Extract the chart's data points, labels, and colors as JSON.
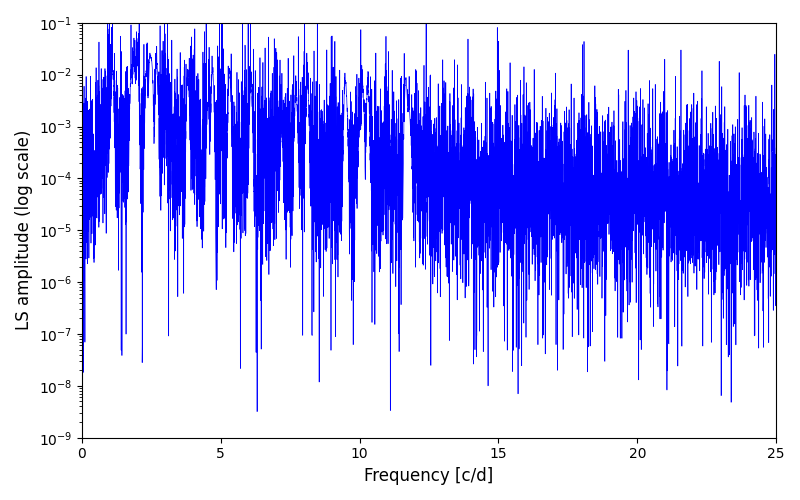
{
  "title": "",
  "xlabel": "Frequency [c/d]",
  "ylabel": "LS amplitude (log scale)",
  "line_color": "#0000ff",
  "xlim": [
    0,
    25
  ],
  "ylim_log_min": -9,
  "ylim_log_max": -1,
  "background_color": "#ffffff",
  "figsize": [
    8.0,
    5.0
  ],
  "dpi": 100,
  "freq_min": 0.01,
  "freq_max": 25.0,
  "n_points": 8000,
  "seed": 7,
  "xticks": [
    0,
    5,
    10,
    15,
    20,
    25
  ],
  "linewidth": 0.5
}
